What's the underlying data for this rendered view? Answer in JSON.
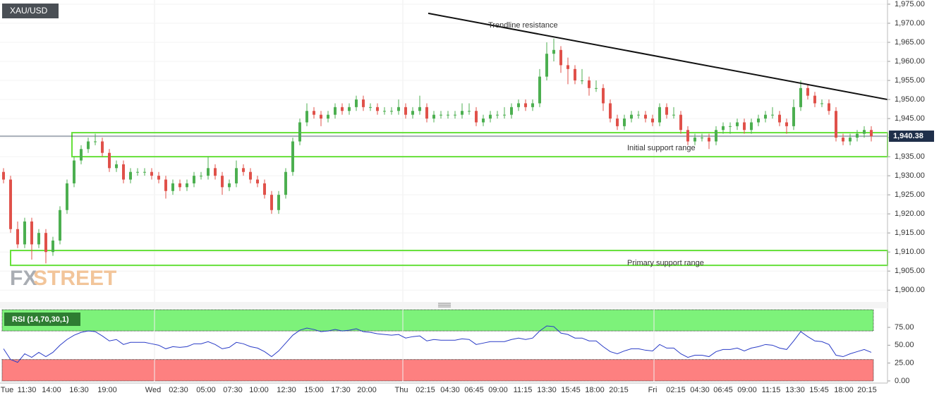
{
  "chart_data": {
    "type": "candlestick",
    "symbol": "XAU/USD",
    "watermark": [
      "FX",
      "STREET"
    ],
    "x_labels": [
      "Tue",
      "11:30",
      "14:00",
      "16:30",
      "19:00",
      "Wed",
      "02:30",
      "05:00",
      "07:30",
      "10:00",
      "12:30",
      "15:00",
      "17:30",
      "20:00",
      "Thu",
      "02:15",
      "04:30",
      "06:45",
      "09:00",
      "11:15",
      "13:30",
      "15:45",
      "18:00",
      "20:15",
      "Fri",
      "02:15",
      "04:30",
      "06:45",
      "09:00",
      "11:15",
      "13:30",
      "15:45",
      "18:00",
      "20:15"
    ],
    "ohlc": [
      [
        1931,
        1932,
        1928,
        1929
      ],
      [
        1929,
        1930,
        1915,
        1916
      ],
      [
        1916,
        1918,
        1911,
        1912
      ],
      [
        1912,
        1919,
        1911,
        1918
      ],
      [
        1918,
        1919,
        1908,
        1912
      ],
      [
        1912,
        1916,
        1911,
        1915
      ],
      [
        1915,
        1916,
        1907,
        1910
      ],
      [
        1910,
        1914,
        1909,
        1913
      ],
      [
        1913,
        1922,
        1912,
        1921
      ],
      [
        1921,
        1929,
        1920,
        1928
      ],
      [
        1928,
        1935,
        1927,
        1934
      ],
      [
        1934,
        1938,
        1933,
        1937
      ],
      [
        1937,
        1940,
        1936,
        1939
      ],
      [
        1939,
        1941,
        1938,
        1939
      ],
      [
        1939,
        1940,
        1935,
        1936
      ],
      [
        1936,
        1937,
        1931,
        1932
      ],
      [
        1932,
        1934,
        1931,
        1933
      ],
      [
        1933,
        1934,
        1928,
        1929
      ],
      [
        1929,
        1932,
        1928,
        1931
      ],
      [
        1931,
        1932,
        1930,
        1931
      ],
      [
        1931,
        1932,
        1930,
        1931
      ],
      [
        1931,
        1932,
        1929,
        1930
      ],
      [
        1930,
        1931,
        1928,
        1929
      ],
      [
        1929,
        1930,
        1924,
        1926
      ],
      [
        1926,
        1929,
        1925,
        1928
      ],
      [
        1928,
        1929,
        1926,
        1927
      ],
      [
        1927,
        1929,
        1926,
        1928
      ],
      [
        1928,
        1931,
        1927,
        1930
      ],
      [
        1930,
        1931,
        1929,
        1930
      ],
      [
        1930,
        1935,
        1929,
        1932
      ],
      [
        1932,
        1933,
        1929,
        1930
      ],
      [
        1930,
        1931,
        1925,
        1927
      ],
      [
        1927,
        1929,
        1926,
        1928
      ],
      [
        1928,
        1934,
        1927,
        1932
      ],
      [
        1932,
        1933,
        1930,
        1931
      ],
      [
        1931,
        1932,
        1928,
        1929
      ],
      [
        1929,
        1930,
        1927,
        1928
      ],
      [
        1928,
        1929,
        1924,
        1925
      ],
      [
        1925,
        1926,
        1920,
        1921
      ],
      [
        1921,
        1926,
        1920,
        1925
      ],
      [
        1925,
        1932,
        1924,
        1931
      ],
      [
        1931,
        1940,
        1930,
        1939
      ],
      [
        1939,
        1945,
        1938,
        1944
      ],
      [
        1944,
        1949,
        1943,
        1947
      ],
      [
        1947,
        1948,
        1945,
        1946
      ],
      [
        1946,
        1947,
        1943,
        1945
      ],
      [
        1945,
        1947,
        1944,
        1946
      ],
      [
        1946,
        1949,
        1945,
        1948
      ],
      [
        1948,
        1949,
        1946,
        1947
      ],
      [
        1947,
        1949,
        1946,
        1948
      ],
      [
        1948,
        1951,
        1947,
        1950
      ],
      [
        1950,
        1951,
        1947,
        1948
      ],
      [
        1948,
        1949,
        1947,
        1948
      ],
      [
        1948,
        1949,
        1946,
        1947
      ],
      [
        1947,
        1948,
        1946,
        1947
      ],
      [
        1947,
        1948,
        1946,
        1947
      ],
      [
        1947,
        1950,
        1946,
        1948
      ],
      [
        1948,
        1949,
        1945,
        1946
      ],
      [
        1946,
        1948,
        1945,
        1947
      ],
      [
        1947,
        1951,
        1946,
        1948
      ],
      [
        1948,
        1949,
        1944,
        1945
      ],
      [
        1945,
        1947,
        1944,
        1946
      ],
      [
        1946,
        1947,
        1945,
        1946
      ],
      [
        1946,
        1947,
        1945,
        1946
      ],
      [
        1946,
        1947,
        1945,
        1946
      ],
      [
        1946,
        1949,
        1945,
        1947
      ],
      [
        1947,
        1949,
        1946,
        1947
      ],
      [
        1947,
        1948,
        1943,
        1944
      ],
      [
        1944,
        1946,
        1943,
        1945
      ],
      [
        1945,
        1947,
        1944,
        1946
      ],
      [
        1946,
        1947,
        1945,
        1946
      ],
      [
        1946,
        1948,
        1945,
        1946
      ],
      [
        1946,
        1949,
        1945,
        1948
      ],
      [
        1948,
        1950,
        1947,
        1949
      ],
      [
        1949,
        1950,
        1947,
        1948
      ],
      [
        1948,
        1950,
        1947,
        1949
      ],
      [
        1949,
        1958,
        1948,
        1956
      ],
      [
        1956,
        1965,
        1955,
        1962
      ],
      [
        1962,
        1966,
        1960,
        1963
      ],
      [
        1963,
        1964,
        1957,
        1959
      ],
      [
        1959,
        1961,
        1954,
        1958
      ],
      [
        1958,
        1959,
        1954,
        1955
      ],
      [
        1955,
        1958,
        1954,
        1955
      ],
      [
        1955,
        1956,
        1951,
        1953
      ],
      [
        1953,
        1955,
        1952,
        1953
      ],
      [
        1953,
        1954,
        1947,
        1949
      ],
      [
        1949,
        1950,
        1944,
        1945
      ],
      [
        1945,
        1946,
        1942,
        1943
      ],
      [
        1943,
        1946,
        1942,
        1945
      ],
      [
        1945,
        1947,
        1944,
        1946
      ],
      [
        1946,
        1947,
        1945,
        1946
      ],
      [
        1946,
        1947,
        1944,
        1945
      ],
      [
        1945,
        1946,
        1943,
        1944
      ],
      [
        1944,
        1949,
        1943,
        1948
      ],
      [
        1948,
        1949,
        1945,
        1946
      ],
      [
        1946,
        1948,
        1945,
        1946
      ],
      [
        1946,
        1947,
        1941,
        1942
      ],
      [
        1942,
        1943,
        1938,
        1939
      ],
      [
        1939,
        1941,
        1938,
        1940
      ],
      [
        1940,
        1941,
        1939,
        1940
      ],
      [
        1940,
        1941,
        1937,
        1939
      ],
      [
        1939,
        1943,
        1938,
        1942
      ],
      [
        1942,
        1944,
        1941,
        1943
      ],
      [
        1943,
        1944,
        1941,
        1943
      ],
      [
        1943,
        1945,
        1942,
        1944
      ],
      [
        1944,
        1945,
        1941,
        1942
      ],
      [
        1942,
        1945,
        1941,
        1944
      ],
      [
        1944,
        1946,
        1943,
        1945
      ],
      [
        1945,
        1947,
        1944,
        1946
      ],
      [
        1946,
        1948,
        1945,
        1946
      ],
      [
        1946,
        1947,
        1943,
        1944
      ],
      [
        1944,
        1945,
        1941,
        1943
      ],
      [
        1943,
        1950,
        1942,
        1948
      ],
      [
        1948,
        1955,
        1947,
        1953
      ],
      [
        1953,
        1954,
        1950,
        1951
      ],
      [
        1951,
        1952,
        1948,
        1949
      ],
      [
        1949,
        1950,
        1948,
        1949
      ],
      [
        1949,
        1950,
        1946,
        1947
      ],
      [
        1947,
        1948,
        1939,
        1940
      ],
      [
        1940,
        1941,
        1938,
        1939
      ],
      [
        1939,
        1941,
        1938,
        1940
      ],
      [
        1940,
        1942,
        1939,
        1941
      ],
      [
        1941,
        1943,
        1940,
        1942
      ],
      [
        1942,
        1943,
        1939,
        1940.38
      ]
    ],
    "ylim": [
      1896.9,
      1976.1
    ],
    "yticks": [
      {
        "value": 1900,
        "label": "1,900.00"
      },
      {
        "value": 1905,
        "label": "1,905.00"
      },
      {
        "value": 1910,
        "label": "1,910.00"
      },
      {
        "value": 1915,
        "label": "1,915.00"
      },
      {
        "value": 1920,
        "label": "1,920.00"
      },
      {
        "value": 1925,
        "label": "1,925.00"
      },
      {
        "value": 1930,
        "label": "1,930.00"
      },
      {
        "value": 1935,
        "label": "1,935.00"
      },
      {
        "value": 1940,
        "label": "1,940.00"
      },
      {
        "value": 1945,
        "label": "1,945.00"
      },
      {
        "value": 1950,
        "label": "1,950.00"
      },
      {
        "value": 1955,
        "label": "1,955.00"
      },
      {
        "value": 1960,
        "label": "1,960.00"
      },
      {
        "value": 1965,
        "label": "1,965.00"
      },
      {
        "value": 1970,
        "label": "1,970.00"
      },
      {
        "value": 1975,
        "label": "1,975.00"
      }
    ],
    "last_price": {
      "value": 1940.38,
      "label": "1,940.38"
    },
    "trendline": {
      "label": "Trendline resistance",
      "start": 1972.6,
      "end": 1950
    },
    "zones": [
      {
        "label": "Initial support range",
        "top": 1941.3,
        "bottom": 1935
      },
      {
        "label": "Primary support range",
        "top": 1910.4,
        "bottom": 1906.5
      }
    ],
    "colors": {
      "up": "#4caf50",
      "down": "#e0514a",
      "zone": "#66e03a",
      "trend": "#111111"
    },
    "rsi": {
      "title": "RSI (14,70,30,1)",
      "color": "#2a3cc7",
      "overbought": 70,
      "oversold": 30,
      "ylim": [
        -3,
        101.7
      ],
      "yticks": [
        {
          "value": 0,
          "label": "0.00"
        },
        {
          "value": 25,
          "label": "25.00"
        },
        {
          "value": 50,
          "label": "50.00"
        },
        {
          "value": 75,
          "label": "75.00"
        }
      ],
      "values": [
        45,
        30,
        26,
        38,
        33,
        40,
        34,
        40,
        50,
        58,
        64,
        68,
        70,
        69,
        63,
        56,
        58,
        51,
        54,
        54,
        54,
        52,
        50,
        45,
        48,
        47,
        48,
        52,
        52,
        55,
        51,
        45,
        47,
        54,
        52,
        48,
        46,
        41,
        34,
        42,
        53,
        64,
        71,
        74,
        72,
        69,
        70,
        72,
        70,
        71,
        73,
        69,
        68,
        66,
        65,
        64,
        65,
        60,
        62,
        63,
        56,
        58,
        57,
        57,
        57,
        59,
        58,
        51,
        53,
        55,
        55,
        55,
        58,
        60,
        58,
        60,
        70,
        77,
        76,
        67,
        65,
        60,
        60,
        56,
        56,
        48,
        41,
        38,
        42,
        45,
        45,
        43,
        42,
        51,
        46,
        46,
        38,
        33,
        36,
        36,
        34,
        41,
        44,
        44,
        46,
        42,
        46,
        48,
        51,
        50,
        46,
        44,
        56,
        69,
        62,
        56,
        55,
        51,
        36,
        34,
        38,
        41,
        44,
        40
      ]
    }
  }
}
